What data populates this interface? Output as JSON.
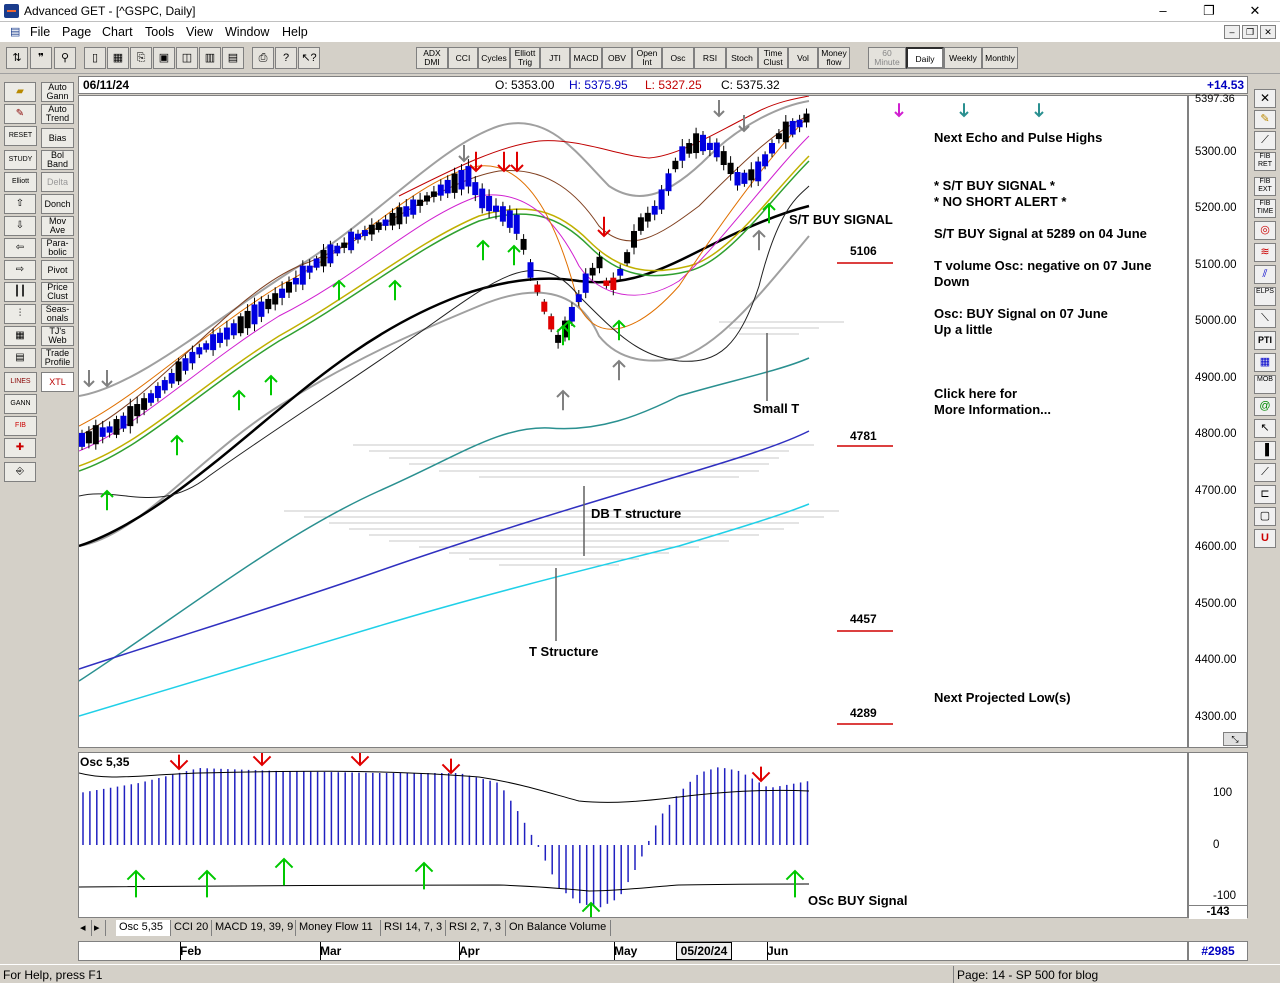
{
  "window": {
    "title": "Advanced GET - [^GSPC, Daily]",
    "minimize": "–",
    "restore": "❐",
    "close": "✕"
  },
  "menu": {
    "items": [
      "File",
      "Page",
      "Chart",
      "Tools",
      "View",
      "Window",
      "Help"
    ]
  },
  "toolbar": {
    "indicators": [
      "ADX DMI",
      "CCI",
      "Cycles",
      "Elliott Trig",
      "JTI",
      "MACD",
      "OBV",
      "Open Int",
      "Osc",
      "RSI",
      "Stoch",
      "Time Clust",
      "Vol",
      "Money flow"
    ],
    "timeframes": [
      "60 Minute",
      "Daily",
      "Weekly",
      "Monthly"
    ]
  },
  "left_toolbar": {
    "labels": [
      "Auto Gann",
      "Auto Trend",
      "Bias",
      "Bol Band",
      "Delta",
      "Donch",
      "Mov Ave",
      "Para-bolic",
      "Pivot",
      "Price Clust",
      "Seas-onals",
      "TJ's Web",
      "Trade Profile",
      "XTL"
    ],
    "icon_labels": [
      "RESET",
      "STUDY",
      "Elliott",
      "LINES",
      "GANN",
      "FIB"
    ]
  },
  "right_toolbar": {
    "labels": [
      "FIB RET",
      "FIB EXT",
      "FIB TIME",
      "PTI",
      "MOB",
      "ELPS"
    ]
  },
  "info_bar": {
    "date": "06/11/24",
    "open": "O: 5353.00",
    "high": "H: 5375.95",
    "low": "L: 5327.25",
    "close": "C: 5375.32",
    "change": "+14.53"
  },
  "price_scale": {
    "labels": [
      "5397.36",
      "5300.00",
      "5200.00",
      "5100.00",
      "5000.00",
      "4900.00",
      "4800.00",
      "4700.00",
      "4600.00",
      "4500.00",
      "4400.00",
      "4300.00"
    ]
  },
  "annotations": {
    "next_echo": "Next Echo and Pulse Highs",
    "st_buy": "* S/T BUY SIGNAL *",
    "no_short": "* NO SHORT ALERT *",
    "st_buy_detail": "S/T BUY Signal at 5289 on 04 June",
    "tvol_line1": "T volume Osc: negative on 07 June",
    "tvol_line2": "Down",
    "osc_line1": "Osc: BUY Signal on 07 June",
    "osc_line2": "Up a little",
    "click_line1": "Click here for",
    "click_line2": "More Information...",
    "next_low": "Next Projected Low(s)",
    "st_buy_signal_chart": "S/T BUY SIGNAL",
    "small_t": "Small T",
    "db_t": "DB T structure",
    "t_structure": "T Structure",
    "levels": [
      "5106",
      "4781",
      "4457",
      "4289"
    ]
  },
  "osc_panel": {
    "title": "Osc 5,35",
    "scale_labels": [
      "100",
      "0",
      "-100"
    ],
    "current_value": "-143",
    "buy_signal": "OSc BUY Signal"
  },
  "tabs": [
    "Osc 5,35",
    "CCI 20",
    "MACD 19, 39, 9",
    "Money Flow 11",
    "RSI 14, 7, 3",
    "RSI 2, 7, 3",
    "On Balance Volume"
  ],
  "date_axis": {
    "labels": [
      "Feb",
      "Mar",
      "Apr",
      "May",
      "Jun"
    ],
    "cursor_date": "05/20/24"
  },
  "bar_count": "#2985",
  "status": {
    "left": "For Help, press F1",
    "right": "Page: 14 - SP 500 for blog"
  },
  "colors": {
    "up_candle": "#0000e0",
    "down_candle": "#000000",
    "signal_down": "#e00000",
    "signal_up": "#00c800",
    "osc_bars": "#2020c0"
  }
}
